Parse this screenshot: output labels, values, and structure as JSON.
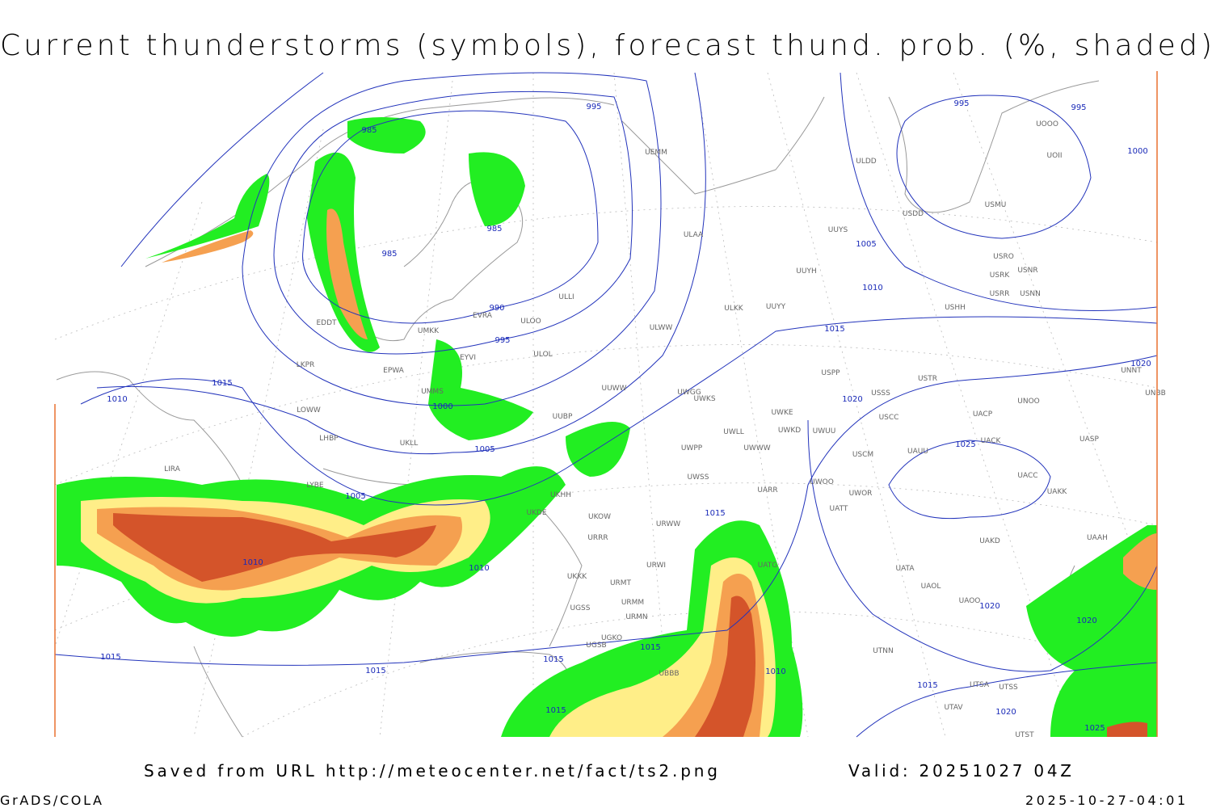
{
  "header": {
    "title": "Current thunderstorms (symbols), forecast thund. prob. (%, shaded)"
  },
  "map": {
    "isobar_labels": [
      985,
      985,
      985,
      990,
      995,
      995,
      995,
      995,
      1000,
      1000,
      1005,
      1005,
      1005,
      1010,
      1010,
      1010,
      1010,
      1010,
      1015,
      1015,
      1015,
      1015,
      1015,
      1015,
      1015,
      1015,
      1015,
      1020,
      1020,
      1020,
      1020,
      1020,
      1025,
      1025
    ],
    "stations": [
      "ULDD",
      "UUYS",
      "ULAA",
      "UUYH",
      "ULKK",
      "UUYY",
      "ULWW",
      "UEMM",
      "USDD",
      "USMU",
      "UOOO",
      "UOII",
      "USRO",
      "USNR",
      "USRK",
      "USRR",
      "USNN",
      "USHH",
      "USPP",
      "USSS",
      "USTR",
      "USCC",
      "UACP",
      "UNOO",
      "UNBB",
      "UNNT",
      "UACK",
      "UASP",
      "USCM",
      "UAUU",
      "UWOO",
      "UWOR",
      "UATT",
      "UAKK",
      "UACC",
      "UAKD",
      "UAAH",
      "UATA",
      "UAOL",
      "UAOO",
      "UTNN",
      "UTSA",
      "UTSS",
      "UTAV",
      "UTST",
      "UWGG",
      "UWKS",
      "UWKE",
      "UWKD",
      "UWUU",
      "UWLL",
      "UWWW",
      "UWPP",
      "UWSS",
      "UARR",
      "URWW",
      "UKOW",
      "URRR",
      "URWI",
      "URMT",
      "URMM",
      "URMN",
      "UKKK",
      "UKHH",
      "UKDE",
      "UUBP",
      "UUWW",
      "UMKK",
      "ULOL",
      "ULOO",
      "ULLI",
      "EVRA",
      "EYVI",
      "EPWA",
      "UMMS",
      "UKLL",
      "LKPR",
      "LOWW",
      "LHBP",
      "LIRA",
      "LYBE",
      "EDDT",
      "UGSS",
      "UGKO",
      "UGSB",
      "UBBB",
      "UATG"
    ]
  },
  "footer": {
    "source": "Saved from URL http://meteocenter.net/fact/ts2.png",
    "valid": "Valid: 20251027 04Z",
    "credit": "GrADS/COLA",
    "timestamp": "2025-10-27-04:01"
  }
}
